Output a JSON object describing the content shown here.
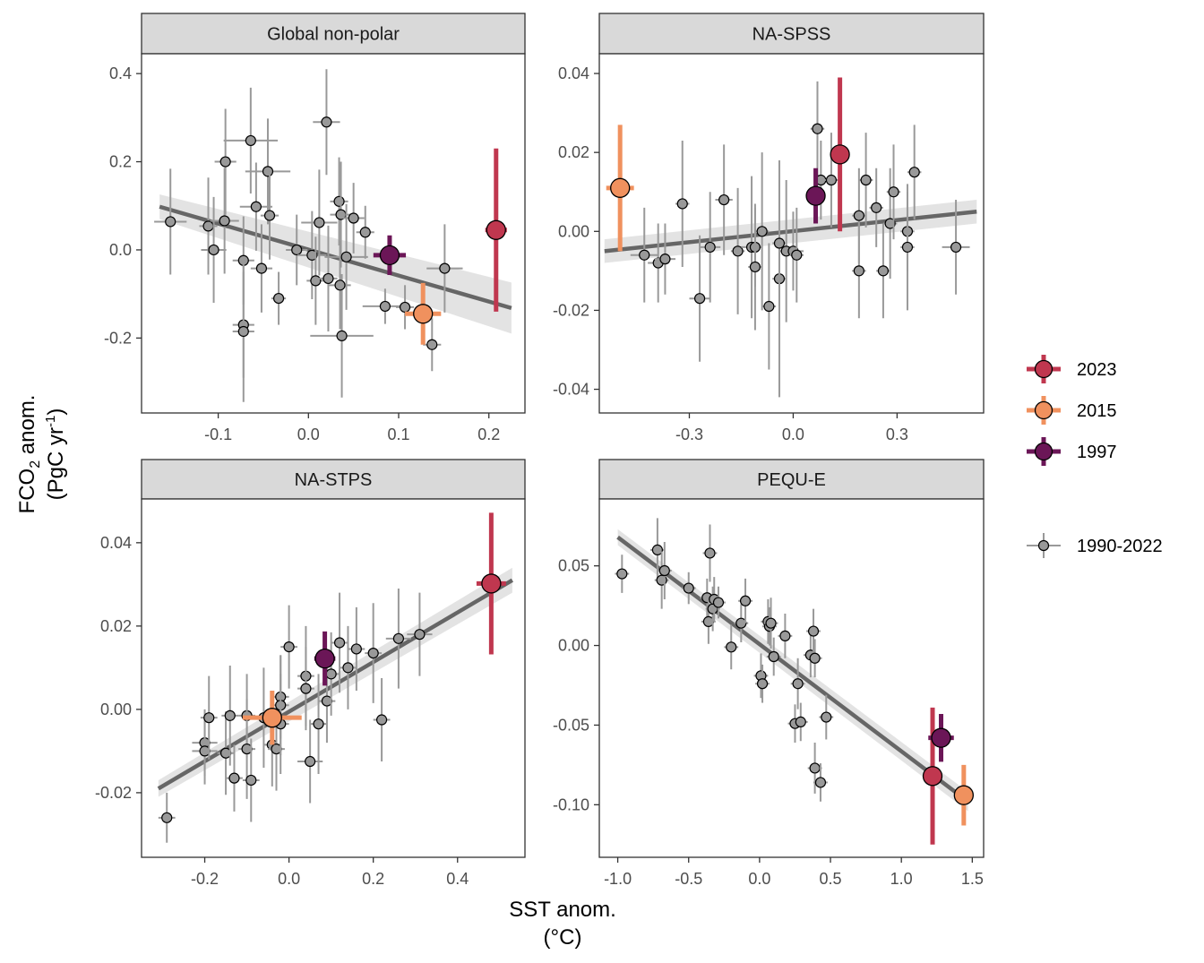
{
  "figure": {
    "xlabel": "SST anom.",
    "xlabel_unit": "(°C)",
    "ylabel_main": "FCO",
    "ylabel_sub": "2",
    "ylabel_rest": " anom.",
    "ylabel_unit_a": "(PgC yr",
    "ylabel_unit_sup": "-1",
    "ylabel_unit_b": ")"
  },
  "legend": {
    "items": [
      {
        "label": "2023",
        "color": "#C0374F"
      },
      {
        "label": "2015",
        "color": "#F0915E"
      },
      {
        "label": "1997",
        "color": "#6B1657"
      },
      {
        "label": "1990-2022",
        "color": "#999999"
      }
    ]
  },
  "chart_data": [
    {
      "type": "scatter",
      "title": "Global non-polar",
      "xlim": [
        -0.185,
        0.24
      ],
      "ylim": [
        -0.37,
        0.445
      ],
      "xticks": [
        -0.1,
        0.0,
        0.1,
        0.2
      ],
      "xtick_labels": [
        "-0.1",
        "0.0",
        "0.1",
        "0.2"
      ],
      "yticks": [
        -0.2,
        0.0,
        0.2,
        0.4
      ],
      "ytick_labels": [
        "-0.2",
        "0.0",
        "0.2",
        "0.4"
      ],
      "fit": {
        "x": [
          -0.165,
          0.225
        ],
        "y": [
          0.098,
          -0.132
        ],
        "band_lo": [
          0.07,
          -0.19
        ],
        "band_hi": [
          0.126,
          -0.074
        ]
      },
      "points": [
        {
          "x": -0.153,
          "y": 0.064,
          "xerr": 0.018,
          "yerr": 0.12
        },
        {
          "x": -0.111,
          "y": 0.054,
          "xerr": 0.01,
          "yerr": 0.11
        },
        {
          "x": -0.105,
          "y": 0.0,
          "xerr": 0.014,
          "yerr": 0.12
        },
        {
          "x": -0.093,
          "y": 0.066,
          "xerr": 0.016,
          "yerr": 0.12
        },
        {
          "x": -0.092,
          "y": 0.2,
          "xerr": 0.012,
          "yerr": 0.12
        },
        {
          "x": -0.072,
          "y": -0.024,
          "xerr": 0.012,
          "yerr": 0.1
        },
        {
          "x": -0.072,
          "y": -0.17,
          "xerr": 0.012,
          "yerr": 0.12
        },
        {
          "x": -0.072,
          "y": -0.185,
          "xerr": 0.012,
          "yerr": 0.16
        },
        {
          "x": -0.064,
          "y": 0.248,
          "xerr": 0.03,
          "yerr": 0.12
        },
        {
          "x": -0.058,
          "y": 0.098,
          "xerr": 0.018,
          "yerr": 0.1
        },
        {
          "x": -0.052,
          "y": -0.042,
          "xerr": 0.012,
          "yerr": 0.1
        },
        {
          "x": -0.045,
          "y": 0.178,
          "xerr": 0.025,
          "yerr": 0.12
        },
        {
          "x": -0.043,
          "y": 0.078,
          "xerr": 0.01,
          "yerr": 0.1
        },
        {
          "x": -0.033,
          "y": -0.11,
          "xerr": 0.008,
          "yerr": 0.06
        },
        {
          "x": -0.013,
          "y": 0.0,
          "xerr": 0.012,
          "yerr": 0.08
        },
        {
          "x": 0.004,
          "y": -0.012,
          "xerr": 0.016,
          "yerr": 0.1
        },
        {
          "x": 0.008,
          "y": -0.07,
          "xerr": 0.01,
          "yerr": 0.1
        },
        {
          "x": 0.012,
          "y": 0.062,
          "xerr": 0.02,
          "yerr": 0.12
        },
        {
          "x": 0.02,
          "y": 0.29,
          "xerr": 0.015,
          "yerr": 0.12
        },
        {
          "x": 0.022,
          "y": -0.065,
          "xerr": 0.01,
          "yerr": 0.12
        },
        {
          "x": 0.034,
          "y": 0.11,
          "xerr": 0.01,
          "yerr": 0.1
        },
        {
          "x": 0.036,
          "y": 0.08,
          "xerr": 0.012,
          "yerr": 0.12
        },
        {
          "x": 0.037,
          "y": -0.195,
          "xerr": 0.035,
          "yerr": 0.14
        },
        {
          "x": 0.035,
          "y": -0.08,
          "xerr": 0.012,
          "yerr": 0.1
        },
        {
          "x": 0.042,
          "y": -0.016,
          "xerr": 0.024,
          "yerr": 0.12
        },
        {
          "x": 0.05,
          "y": 0.072,
          "xerr": 0.012,
          "yerr": 0.08
        },
        {
          "x": 0.063,
          "y": 0.04,
          "xerr": 0.01,
          "yerr": 0.06
        },
        {
          "x": 0.085,
          "y": -0.128,
          "xerr": 0.025,
          "yerr": 0.04
        },
        {
          "x": 0.107,
          "y": -0.13,
          "xerr": 0.01,
          "yerr": 0.05
        },
        {
          "x": 0.137,
          "y": -0.215,
          "xerr": 0.01,
          "yerr": 0.06
        },
        {
          "x": 0.151,
          "y": -0.042,
          "xerr": 0.02,
          "yerr": 0.1
        }
      ],
      "highlights": [
        {
          "year": "2023",
          "x": 0.208,
          "y": 0.045,
          "xerr": 0.012,
          "yerr": 0.185
        },
        {
          "year": "2015",
          "x": 0.127,
          "y": -0.145,
          "xerr": 0.02,
          "yerr": 0.07
        },
        {
          "year": "1997",
          "x": 0.09,
          "y": -0.012,
          "xerr": 0.018,
          "yerr": 0.045
        }
      ]
    },
    {
      "type": "scatter",
      "title": "NA-SPSS",
      "xlim": [
        -0.56,
        0.55
      ],
      "ylim": [
        -0.046,
        0.045
      ],
      "xticks": [
        -0.3,
        0.0,
        0.3
      ],
      "xtick_labels": [
        "-0.3",
        "0.0",
        "0.3"
      ],
      "yticks": [
        -0.04,
        -0.02,
        0.0,
        0.02,
        0.04
      ],
      "ytick_labels": [
        "-0.04",
        "-0.02",
        "0.00",
        "0.02",
        "0.04"
      ],
      "fit": {
        "x": [
          -0.545,
          0.53
        ],
        "y": [
          -0.005,
          0.005
        ],
        "band_lo": [
          -0.008,
          0.002
        ],
        "band_hi": [
          -0.002,
          0.008
        ]
      },
      "points": [
        {
          "x": -0.43,
          "y": -0.006,
          "xerr": 0.04,
          "yerr": 0.012
        },
        {
          "x": -0.39,
          "y": -0.008,
          "xerr": 0.03,
          "yerr": 0.01
        },
        {
          "x": -0.37,
          "y": -0.007,
          "xerr": 0.03,
          "yerr": 0.009
        },
        {
          "x": -0.32,
          "y": 0.007,
          "xerr": 0.02,
          "yerr": 0.016
        },
        {
          "x": -0.27,
          "y": -0.017,
          "xerr": 0.03,
          "yerr": 0.016
        },
        {
          "x": -0.24,
          "y": -0.004,
          "xerr": 0.03,
          "yerr": 0.014
        },
        {
          "x": -0.2,
          "y": 0.008,
          "xerr": 0.025,
          "yerr": 0.014
        },
        {
          "x": -0.16,
          "y": -0.005,
          "xerr": 0.02,
          "yerr": 0.016
        },
        {
          "x": -0.12,
          "y": -0.004,
          "xerr": 0.03,
          "yerr": 0.018
        },
        {
          "x": -0.11,
          "y": -0.004,
          "xerr": 0.02,
          "yerr": 0.01
        },
        {
          "x": -0.11,
          "y": -0.009,
          "xerr": 0.02,
          "yerr": 0.016
        },
        {
          "x": -0.09,
          "y": 0.0,
          "xerr": 0.02,
          "yerr": 0.02
        },
        {
          "x": -0.07,
          "y": -0.019,
          "xerr": 0.02,
          "yerr": 0.016
        },
        {
          "x": -0.04,
          "y": -0.012,
          "xerr": 0.02,
          "yerr": 0.03
        },
        {
          "x": -0.04,
          "y": -0.003,
          "xerr": 0.02,
          "yerr": 0.016
        },
        {
          "x": -0.02,
          "y": -0.005,
          "xerr": 0.02,
          "yerr": 0.018
        },
        {
          "x": 0.0,
          "y": -0.005,
          "xerr": 0.03,
          "yerr": 0.01
        },
        {
          "x": 0.01,
          "y": -0.006,
          "xerr": 0.02,
          "yerr": 0.012
        },
        {
          "x": 0.07,
          "y": 0.026,
          "xerr": 0.02,
          "yerr": 0.012
        },
        {
          "x": 0.08,
          "y": 0.013,
          "xerr": 0.02,
          "yerr": 0.01
        },
        {
          "x": 0.11,
          "y": 0.013,
          "xerr": 0.02,
          "yerr": 0.012
        },
        {
          "x": 0.19,
          "y": 0.004,
          "xerr": 0.02,
          "yerr": 0.012
        },
        {
          "x": 0.19,
          "y": -0.01,
          "xerr": 0.02,
          "yerr": 0.012
        },
        {
          "x": 0.21,
          "y": 0.013,
          "xerr": 0.02,
          "yerr": 0.012
        },
        {
          "x": 0.24,
          "y": 0.006,
          "xerr": 0.02,
          "yerr": 0.01
        },
        {
          "x": 0.26,
          "y": -0.01,
          "xerr": 0.02,
          "yerr": 0.012
        },
        {
          "x": 0.28,
          "y": 0.002,
          "xerr": 0.02,
          "yerr": 0.014
        },
        {
          "x": 0.29,
          "y": 0.01,
          "xerr": 0.02,
          "yerr": 0.012
        },
        {
          "x": 0.33,
          "y": 0.0,
          "xerr": 0.02,
          "yerr": 0.01
        },
        {
          "x": 0.33,
          "y": -0.004,
          "xerr": 0.02,
          "yerr": 0.016
        },
        {
          "x": 0.35,
          "y": 0.015,
          "xerr": 0.02,
          "yerr": 0.012
        },
        {
          "x": 0.47,
          "y": -0.004,
          "xerr": 0.04,
          "yerr": 0.012
        }
      ],
      "highlights": [
        {
          "year": "2023",
          "x": 0.135,
          "y": 0.0195,
          "xerr": 0.025,
          "yerr": 0.0195
        },
        {
          "year": "2015",
          "x": -0.5,
          "y": 0.011,
          "xerr": 0.04,
          "yerr": 0.016
        },
        {
          "year": "1997",
          "x": 0.065,
          "y": 0.009,
          "xerr": 0.02,
          "yerr": 0.007
        }
      ]
    },
    {
      "type": "scatter",
      "title": "NA-STPS",
      "xlim": [
        -0.35,
        0.56
      ],
      "ylim": [
        -0.0355,
        0.0505
      ],
      "xticks": [
        -0.2,
        0.0,
        0.2,
        0.4
      ],
      "xtick_labels": [
        "-0.2",
        "0.0",
        "0.2",
        "0.4"
      ],
      "yticks": [
        -0.02,
        0.0,
        0.02,
        0.04
      ],
      "ytick_labels": [
        "-0.02",
        "0.00",
        "0.02",
        "0.04"
      ],
      "fit": {
        "x": [
          -0.31,
          0.53
        ],
        "y": [
          -0.019,
          0.031
        ],
        "band_lo": [
          -0.021,
          0.028
        ],
        "band_hi": [
          -0.017,
          0.034
        ]
      },
      "points": [
        {
          "x": -0.29,
          "y": -0.026,
          "xerr": 0.02,
          "yerr": 0.006
        },
        {
          "x": -0.2,
          "y": -0.008,
          "xerr": 0.03,
          "yerr": 0.008
        },
        {
          "x": -0.2,
          "y": -0.01,
          "xerr": 0.03,
          "yerr": 0.008
        },
        {
          "x": -0.19,
          "y": -0.002,
          "xerr": 0.02,
          "yerr": 0.01
        },
        {
          "x": -0.15,
          "y": -0.0105,
          "xerr": 0.02,
          "yerr": 0.01
        },
        {
          "x": -0.14,
          "y": -0.0015,
          "xerr": 0.02,
          "yerr": 0.012
        },
        {
          "x": -0.13,
          "y": -0.0165,
          "xerr": 0.02,
          "yerr": 0.008
        },
        {
          "x": -0.1,
          "y": -0.0015,
          "xerr": 0.02,
          "yerr": 0.01
        },
        {
          "x": -0.1,
          "y": -0.0095,
          "xerr": 0.02,
          "yerr": 0.012
        },
        {
          "x": -0.09,
          "y": -0.017,
          "xerr": 0.02,
          "yerr": 0.01
        },
        {
          "x": -0.06,
          "y": -0.002,
          "xerr": 0.02,
          "yerr": 0.012
        },
        {
          "x": -0.04,
          "y": -0.0085,
          "xerr": 0.02,
          "yerr": 0.01
        },
        {
          "x": -0.03,
          "y": -0.0095,
          "xerr": 0.02,
          "yerr": 0.01
        },
        {
          "x": -0.02,
          "y": 0.003,
          "xerr": 0.02,
          "yerr": 0.01
        },
        {
          "x": -0.02,
          "y": 0.001,
          "xerr": 0.02,
          "yerr": 0.012
        },
        {
          "x": -0.02,
          "y": -0.0035,
          "xerr": 0.02,
          "yerr": 0.012
        },
        {
          "x": 0.0,
          "y": 0.015,
          "xerr": 0.02,
          "yerr": 0.01
        },
        {
          "x": 0.04,
          "y": 0.008,
          "xerr": 0.02,
          "yerr": 0.012
        },
        {
          "x": 0.04,
          "y": 0.005,
          "xerr": 0.02,
          "yerr": 0.01
        },
        {
          "x": 0.05,
          "y": -0.0125,
          "xerr": 0.03,
          "yerr": 0.01
        },
        {
          "x": 0.07,
          "y": -0.0035,
          "xerr": 0.02,
          "yerr": 0.012
        },
        {
          "x": 0.09,
          "y": 0.002,
          "xerr": 0.02,
          "yerr": 0.01
        },
        {
          "x": 0.1,
          "y": 0.0085,
          "xerr": 0.02,
          "yerr": 0.01
        },
        {
          "x": 0.12,
          "y": 0.016,
          "xerr": 0.02,
          "yerr": 0.012
        },
        {
          "x": 0.14,
          "y": 0.01,
          "xerr": 0.02,
          "yerr": 0.01
        },
        {
          "x": 0.16,
          "y": 0.0145,
          "xerr": 0.02,
          "yerr": 0.01
        },
        {
          "x": 0.2,
          "y": 0.0135,
          "xerr": 0.02,
          "yerr": 0.012
        },
        {
          "x": 0.22,
          "y": -0.0025,
          "xerr": 0.02,
          "yerr": 0.01
        },
        {
          "x": 0.26,
          "y": 0.017,
          "xerr": 0.03,
          "yerr": 0.012
        },
        {
          "x": 0.31,
          "y": 0.018,
          "xerr": 0.03,
          "yerr": 0.01
        }
      ],
      "highlights": [
        {
          "year": "2023",
          "x": 0.48,
          "y": 0.0302,
          "xerr": 0.035,
          "yerr": 0.017
        },
        {
          "year": "2015",
          "x": -0.04,
          "y": -0.002,
          "xerr": 0.07,
          "yerr": 0.0065
        },
        {
          "year": "1997",
          "x": 0.085,
          "y": 0.0122,
          "xerr": 0.025,
          "yerr": 0.0065
        }
      ]
    },
    {
      "type": "scatter",
      "title": "PEQU-E",
      "xlim": [
        -1.13,
        1.58
      ],
      "ylim": [
        -0.133,
        0.092
      ],
      "xticks": [
        -1.0,
        -0.5,
        0.0,
        0.5,
        1.0,
        1.5
      ],
      "xtick_labels": [
        "-1.0",
        "-0.5",
        "0.0",
        "0.5",
        "1.0",
        "1.5"
      ],
      "yticks": [
        -0.1,
        -0.05,
        0.0,
        0.05
      ],
      "ytick_labels": [
        "-0.10",
        "-0.05",
        "0.00",
        "0.05"
      ],
      "fit": {
        "x": [
          -1.0,
          1.47
        ],
        "y": [
          0.068,
          -0.098
        ],
        "band_lo": [
          0.063,
          -0.104
        ],
        "band_hi": [
          0.073,
          -0.092
        ]
      },
      "points": [
        {
          "x": -0.97,
          "y": 0.045,
          "xerr": 0.05,
          "yerr": 0.012
        },
        {
          "x": -0.72,
          "y": 0.06,
          "xerr": 0.05,
          "yerr": 0.02
        },
        {
          "x": -0.69,
          "y": 0.041,
          "xerr": 0.05,
          "yerr": 0.018
        },
        {
          "x": -0.67,
          "y": 0.047,
          "xerr": 0.05,
          "yerr": 0.018
        },
        {
          "x": -0.5,
          "y": 0.036,
          "xerr": 0.05,
          "yerr": 0.01
        },
        {
          "x": -0.37,
          "y": 0.03,
          "xerr": 0.05,
          "yerr": 0.012
        },
        {
          "x": -0.36,
          "y": 0.015,
          "xerr": 0.05,
          "yerr": 0.014
        },
        {
          "x": -0.35,
          "y": 0.058,
          "xerr": 0.05,
          "yerr": 0.018
        },
        {
          "x": -0.33,
          "y": 0.023,
          "xerr": 0.05,
          "yerr": 0.014
        },
        {
          "x": -0.32,
          "y": 0.029,
          "xerr": 0.05,
          "yerr": 0.014
        },
        {
          "x": -0.29,
          "y": 0.027,
          "xerr": 0.05,
          "yerr": 0.01
        },
        {
          "x": -0.2,
          "y": -0.001,
          "xerr": 0.05,
          "yerr": 0.014
        },
        {
          "x": -0.13,
          "y": 0.014,
          "xerr": 0.05,
          "yerr": 0.012
        },
        {
          "x": -0.1,
          "y": 0.028,
          "xerr": 0.05,
          "yerr": 0.014
        },
        {
          "x": 0.01,
          "y": -0.019,
          "xerr": 0.05,
          "yerr": 0.014
        },
        {
          "x": 0.02,
          "y": -0.024,
          "xerr": 0.05,
          "yerr": 0.012
        },
        {
          "x": 0.06,
          "y": 0.015,
          "xerr": 0.05,
          "yerr": 0.014
        },
        {
          "x": 0.07,
          "y": 0.012,
          "xerr": 0.05,
          "yerr": 0.012
        },
        {
          "x": 0.08,
          "y": 0.014,
          "xerr": 0.05,
          "yerr": 0.016
        },
        {
          "x": 0.1,
          "y": -0.007,
          "xerr": 0.05,
          "yerr": 0.012
        },
        {
          "x": 0.18,
          "y": 0.006,
          "xerr": 0.05,
          "yerr": 0.014
        },
        {
          "x": 0.25,
          "y": -0.049,
          "xerr": 0.05,
          "yerr": 0.012
        },
        {
          "x": 0.27,
          "y": -0.024,
          "xerr": 0.05,
          "yerr": 0.016
        },
        {
          "x": 0.29,
          "y": -0.048,
          "xerr": 0.05,
          "yerr": 0.012
        },
        {
          "x": 0.36,
          "y": -0.006,
          "xerr": 0.05,
          "yerr": 0.014
        },
        {
          "x": 0.38,
          "y": 0.009,
          "xerr": 0.05,
          "yerr": 0.014
        },
        {
          "x": 0.39,
          "y": -0.008,
          "xerr": 0.05,
          "yerr": 0.012
        },
        {
          "x": 0.39,
          "y": -0.077,
          "xerr": 0.05,
          "yerr": 0.016
        },
        {
          "x": 0.43,
          "y": -0.086,
          "xerr": 0.05,
          "yerr": 0.012
        },
        {
          "x": 0.47,
          "y": -0.045,
          "xerr": 0.05,
          "yerr": 0.014
        }
      ],
      "highlights": [
        {
          "year": "2023",
          "x": 1.22,
          "y": -0.082,
          "xerr": 0.05,
          "yerr": 0.043
        },
        {
          "year": "2015",
          "x": 1.44,
          "y": -0.094,
          "xerr": 0.05,
          "yerr": 0.019
        },
        {
          "year": "1997",
          "x": 1.28,
          "y": -0.058,
          "xerr": 0.09,
          "yerr": 0.015
        }
      ]
    }
  ]
}
